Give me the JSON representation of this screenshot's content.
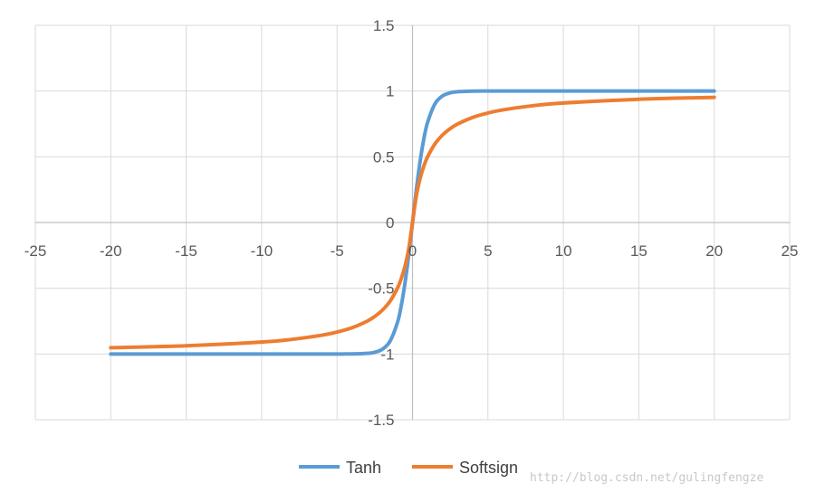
{
  "chart_data": {
    "type": "line",
    "title": "",
    "xlabel": "",
    "ylabel": "",
    "xlim": [
      -25,
      25
    ],
    "ylim": [
      -1.5,
      1.5
    ],
    "x_ticks": [
      -25,
      -20,
      -15,
      -10,
      -5,
      0,
      5,
      10,
      15,
      20,
      25
    ],
    "y_ticks": [
      -1.5,
      -1,
      -0.5,
      0,
      0.5,
      1,
      1.5
    ],
    "grid": true,
    "legend_position": "bottom",
    "x": [
      -20,
      -15,
      -10,
      -8,
      -6,
      -5,
      -4,
      -3,
      -2.5,
      -2,
      -1.5,
      -1,
      -0.75,
      -0.5,
      -0.25,
      0,
      0.25,
      0.5,
      0.75,
      1,
      1.5,
      2,
      2.5,
      3,
      4,
      5,
      6,
      8,
      10,
      15,
      20
    ],
    "series": [
      {
        "name": "Tanh",
        "color": "#5b9bd5",
        "values": [
          -1,
          -1,
          -1,
          -1,
          -1,
          -0.9999,
          -0.9993,
          -0.9951,
          -0.9866,
          -0.964,
          -0.9051,
          -0.7616,
          -0.6351,
          -0.4621,
          -0.2449,
          0,
          0.2449,
          0.4621,
          0.6351,
          0.7616,
          0.9051,
          0.964,
          0.9866,
          0.9951,
          0.9993,
          0.9999,
          1,
          1,
          1,
          1,
          1
        ]
      },
      {
        "name": "Softsign",
        "color": "#ed7d31",
        "values": [
          -0.9524,
          -0.9375,
          -0.9091,
          -0.8889,
          -0.8571,
          -0.8333,
          -0.8,
          -0.75,
          -0.7143,
          -0.6667,
          -0.6,
          -0.5,
          -0.4286,
          -0.3333,
          -0.2,
          0,
          0.2,
          0.3333,
          0.4286,
          0.5,
          0.6,
          0.6667,
          0.7143,
          0.75,
          0.8,
          0.8333,
          0.8571,
          0.8889,
          0.9091,
          0.9375,
          0.9524
        ]
      }
    ]
  },
  "watermark": "http://blog.csdn.net/gulingfengze"
}
